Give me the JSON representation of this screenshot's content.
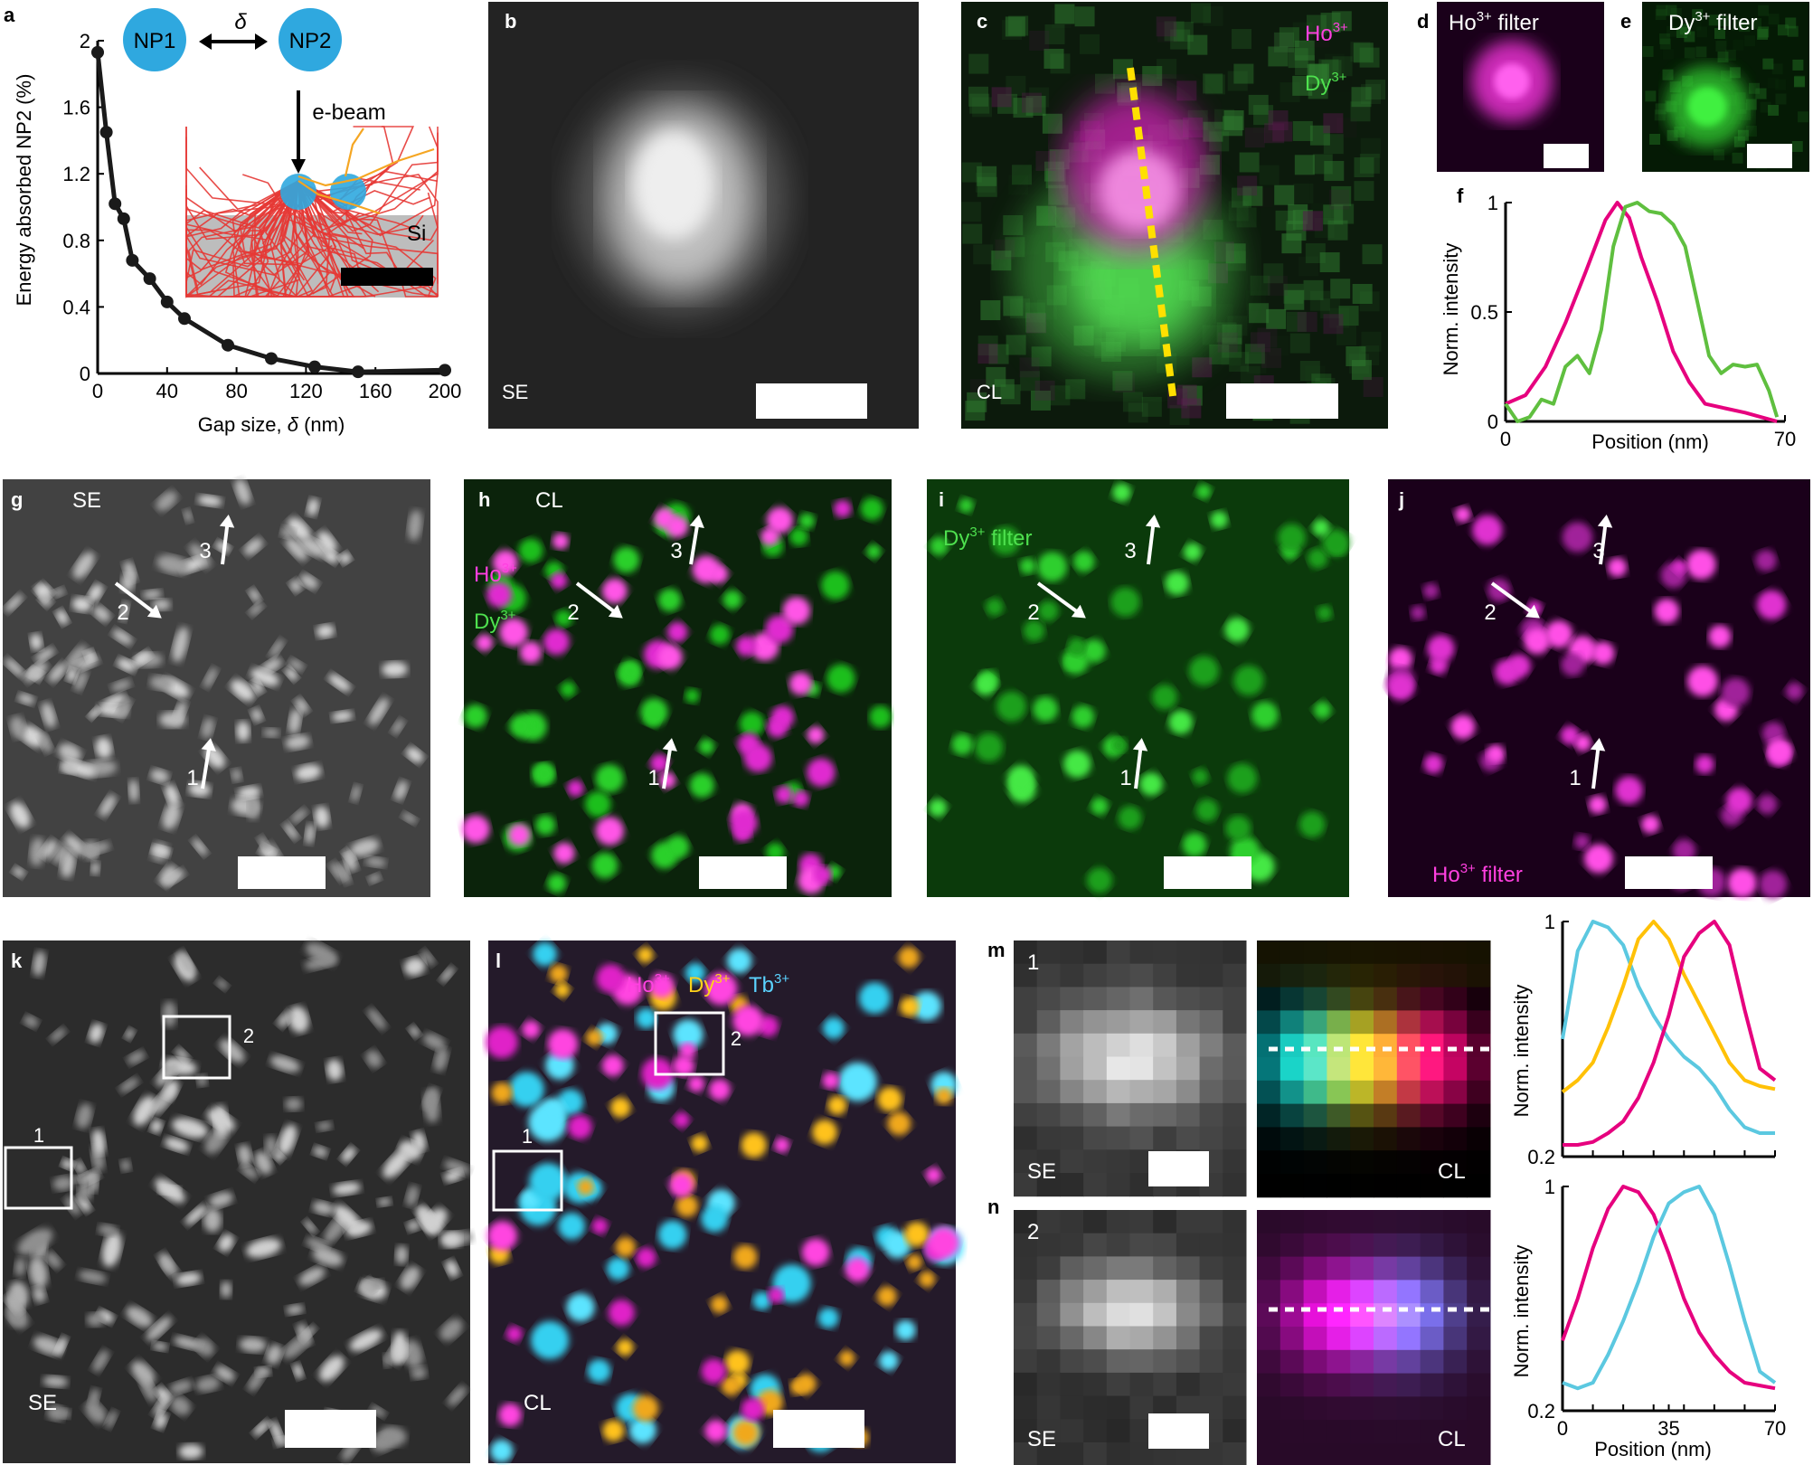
{
  "panel_letters": [
    "a",
    "b",
    "c",
    "d",
    "e",
    "f",
    "g",
    "h",
    "i",
    "j",
    "k",
    "l",
    "m",
    "n"
  ],
  "colors": {
    "magenta": "#e6007e",
    "green": "#5fbf3f",
    "cyan": "#5bc8e0",
    "yellow": "#ffc107",
    "particle": "#2fa8df",
    "red": "#e53935",
    "orange": "#f5a623"
  },
  "panel_a": {
    "ylabel": "Energy absorbed NP2 (%)",
    "xlabel_prefix": "Gap size, ",
    "xlabel_sym": "δ",
    "xlabel_suffix": " (nm)",
    "xticks": [
      "0",
      "40",
      "80",
      "120",
      "160",
      "200"
    ],
    "yticks": [
      "0",
      "0.4",
      "0.8",
      "1.2",
      "1.6",
      "2"
    ],
    "np1": "NP1",
    "np2": "NP2",
    "delta": "δ",
    "ebeam": "e-beam",
    "si": "Si"
  },
  "panel_b": {
    "label": "SE"
  },
  "panel_c": {
    "label": "CL",
    "ho": "Ho",
    "dy": "Dy",
    "ion_sup": "3+"
  },
  "panel_d": {
    "label_pre": "Ho",
    "sup": "3+",
    "label_post": " filter"
  },
  "panel_e": {
    "label_pre": "Dy",
    "sup": "3+",
    "label_post": " filter"
  },
  "panel_f": {
    "ylabel": "Norm. intensity",
    "xlabel": "Position (nm)",
    "xticks": [
      "0",
      "70"
    ],
    "yticks": [
      "0",
      "0.5",
      "1"
    ]
  },
  "panel_g": {
    "label": "SE",
    "arrows": [
      "1",
      "2",
      "3"
    ]
  },
  "panel_h": {
    "label": "CL",
    "ho": "Ho",
    "dy": "Dy",
    "sup": "3+",
    "arrows": [
      "1",
      "2",
      "3"
    ]
  },
  "panel_i": {
    "label_pre": "Dy",
    "sup": "3+",
    "label_post": " filter",
    "arrows": [
      "1",
      "2",
      "3"
    ]
  },
  "panel_j": {
    "label_pre": "Ho",
    "sup": "3+",
    "label_post": " filter",
    "arrows": [
      "1",
      "2",
      "3"
    ]
  },
  "panel_k": {
    "label": "SE",
    "boxes": [
      "1",
      "2"
    ]
  },
  "panel_l": {
    "label": "CL",
    "ho": "Ho",
    "dy": "Dy",
    "tb": "Tb",
    "sup": "3+",
    "boxes": [
      "1",
      "2"
    ]
  },
  "panel_m": {
    "id": "1",
    "se": "SE",
    "cl": "CL",
    "ylabel": "Norm. intensity",
    "yticks": [
      "0.2",
      "1"
    ]
  },
  "panel_n": {
    "id": "2",
    "se": "SE",
    "cl": "CL",
    "ylabel": "Norm. intensity",
    "yticks": [
      "0.2",
      "1"
    ],
    "xlabel": "Position (nm)",
    "xticks": [
      "0",
      "35",
      "70"
    ]
  },
  "chart_data": [
    {
      "panel": "a",
      "type": "line",
      "x": [
        0,
        5,
        10,
        15,
        20,
        30,
        40,
        50,
        75,
        100,
        125,
        150,
        200
      ],
      "y": [
        1.93,
        1.45,
        1.02,
        0.93,
        0.68,
        0.57,
        0.43,
        0.33,
        0.17,
        0.09,
        0.04,
        0.01,
        0.02
      ],
      "xlabel": "Gap size, δ (nm)",
      "ylabel": "Energy absorbed NP2 (%)",
      "xlim": [
        0,
        200
      ],
      "ylim": [
        0,
        2
      ]
    },
    {
      "panel": "f",
      "type": "line",
      "xlim": [
        0,
        70
      ],
      "ylim": [
        0,
        1
      ],
      "xlabel": "Position (nm)",
      "ylabel": "Norm. intensity",
      "series": [
        {
          "color": "#e6007e",
          "x": [
            0,
            5,
            10,
            15,
            20,
            25,
            28,
            31,
            34,
            38,
            42,
            46,
            50,
            55,
            60,
            64,
            68
          ],
          "y": [
            0.08,
            0.12,
            0.25,
            0.45,
            0.68,
            0.92,
            1.0,
            0.93,
            0.75,
            0.55,
            0.32,
            0.18,
            0.08,
            0.06,
            0.04,
            0.02,
            0.0
          ]
        },
        {
          "color": "#5fbf3f",
          "x": [
            0,
            3,
            6,
            9,
            12,
            15,
            18,
            21,
            24,
            27,
            30,
            33,
            36,
            39,
            42,
            45,
            48,
            51,
            54,
            57,
            60,
            63,
            66,
            68
          ],
          "y": [
            0.08,
            0.0,
            0.02,
            0.1,
            0.08,
            0.25,
            0.3,
            0.22,
            0.42,
            0.8,
            0.98,
            1.0,
            0.96,
            0.95,
            0.9,
            0.8,
            0.55,
            0.3,
            0.22,
            0.26,
            0.25,
            0.26,
            0.14,
            0.02
          ]
        }
      ]
    },
    {
      "panel": "m",
      "type": "line",
      "xlim": [
        0,
        70
      ],
      "ylim": [
        0.2,
        1
      ],
      "ylabel": "Norm. intensity",
      "series": [
        {
          "color": "#5bc8e0",
          "x": [
            0,
            5,
            10,
            15,
            20,
            25,
            30,
            35,
            40,
            45,
            50,
            55,
            60,
            65,
            70
          ],
          "y": [
            0.6,
            0.9,
            1.0,
            0.98,
            0.92,
            0.78,
            0.68,
            0.6,
            0.54,
            0.5,
            0.44,
            0.36,
            0.3,
            0.28,
            0.28
          ]
        },
        {
          "color": "#ffc107",
          "x": [
            0,
            5,
            10,
            15,
            20,
            25,
            30,
            35,
            40,
            45,
            50,
            55,
            60,
            65,
            70
          ],
          "y": [
            0.42,
            0.46,
            0.52,
            0.64,
            0.78,
            0.94,
            1.0,
            0.94,
            0.82,
            0.72,
            0.62,
            0.52,
            0.46,
            0.44,
            0.43
          ]
        },
        {
          "color": "#e6007e",
          "x": [
            0,
            5,
            10,
            15,
            20,
            25,
            30,
            35,
            40,
            45,
            50,
            55,
            60,
            65,
            70
          ],
          "y": [
            0.24,
            0.24,
            0.25,
            0.28,
            0.32,
            0.4,
            0.52,
            0.68,
            0.88,
            0.96,
            1.0,
            0.92,
            0.7,
            0.5,
            0.46
          ]
        }
      ]
    },
    {
      "panel": "n",
      "type": "line",
      "xlim": [
        0,
        70
      ],
      "ylim": [
        0.2,
        1
      ],
      "xlabel": "Position (nm)",
      "ylabel": "Norm. intensity",
      "series": [
        {
          "color": "#e6007e",
          "x": [
            0,
            5,
            10,
            15,
            20,
            25,
            30,
            35,
            40,
            45,
            50,
            55,
            60,
            65,
            70
          ],
          "y": [
            0.45,
            0.6,
            0.78,
            0.92,
            1.0,
            0.98,
            0.9,
            0.76,
            0.6,
            0.48,
            0.4,
            0.34,
            0.3,
            0.29,
            0.28
          ]
        },
        {
          "color": "#5bc8e0",
          "x": [
            0,
            5,
            10,
            15,
            20,
            25,
            30,
            35,
            40,
            45,
            50,
            55,
            60,
            65,
            70
          ],
          "y": [
            0.3,
            0.28,
            0.3,
            0.4,
            0.52,
            0.66,
            0.82,
            0.94,
            0.98,
            1.0,
            0.9,
            0.72,
            0.52,
            0.34,
            0.3
          ]
        }
      ]
    }
  ]
}
